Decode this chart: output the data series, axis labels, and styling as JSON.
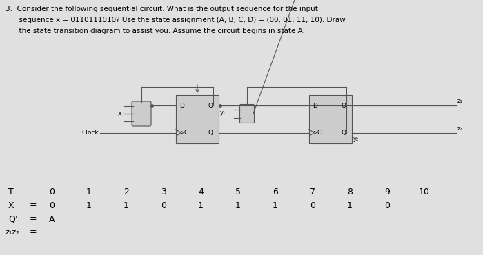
{
  "title_line1": "3.  Consider the following sequential circuit. What is the output sequence for the input",
  "title_line2": "      sequence x = 0110111010? Use the state assignment (A, B, C, D) = (00, 01, 11, 10). Draw",
  "title_line3": "      the state transition diagram to assist you. Assume the circuit begins in state A.",
  "bg_color": "#e0e0e0",
  "row_T_label": "T",
  "row_X_label": "X",
  "row_Q_label": "Q’",
  "row_Z_label": "z₁z₂",
  "equals": "=",
  "T_values": [
    "0",
    "1",
    "2",
    "3",
    "4",
    "5",
    "6",
    "7",
    "8",
    "9",
    "10"
  ],
  "X_values": [
    "0",
    "1",
    "1",
    "0",
    "1",
    "1",
    "1",
    "0",
    "1",
    "0"
  ],
  "Q_start": "A",
  "clock_label": "Clock",
  "x_label": "x",
  "y1_label": "y₁",
  "y2_label": "y₂",
  "z1_label": "z₁",
  "z2_label": "z₂",
  "D_label": "D",
  "Q_label": "Q",
  "C_label": ">C",
  "Qbar_label": "Q̅",
  "line_color": "#555555",
  "box_color": "#cccccc"
}
